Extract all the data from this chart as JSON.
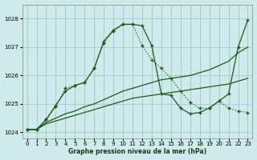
{
  "xlabel": "Graphe pression niveau de la mer (hPa)",
  "background_color": "#ceeaea",
  "grid_color": "#a8cccc",
  "line_color": "#1a5c1a",
  "xlim": [
    -0.5,
    23.5
  ],
  "ylim": [
    1023.8,
    1028.5
  ],
  "yticks": [
    1024,
    1025,
    1026,
    1027,
    1028
  ],
  "xticks": [
    0,
    1,
    2,
    3,
    4,
    5,
    6,
    7,
    8,
    9,
    10,
    11,
    12,
    13,
    14,
    15,
    16,
    17,
    18,
    19,
    20,
    21,
    22,
    23
  ],
  "series_dotted_x": [
    0,
    1,
    2,
    3,
    4,
    5,
    6,
    7,
    8,
    9,
    10,
    11,
    12,
    13,
    14,
    15,
    16,
    17,
    18,
    19,
    20,
    21,
    22,
    23
  ],
  "series_dotted_y": [
    1024.1,
    1024.1,
    1024.45,
    1024.9,
    1025.55,
    1025.65,
    1025.75,
    1026.25,
    1027.15,
    1027.55,
    1027.8,
    1027.8,
    1027.05,
    1026.55,
    1026.25,
    1025.9,
    1025.45,
    1025.05,
    1024.85,
    1024.85,
    1025.1,
    1024.85,
    1024.75,
    1024.7
  ],
  "series_solid_marker_x": [
    0,
    1,
    2,
    3,
    4,
    5,
    6,
    7,
    8,
    9,
    10,
    11,
    12,
    13,
    14,
    15,
    16,
    17,
    18,
    19,
    20,
    21,
    22,
    23
  ],
  "series_solid_marker_y": [
    1024.1,
    1024.1,
    1024.45,
    1024.95,
    1025.45,
    1025.65,
    1025.75,
    1026.25,
    1027.2,
    1027.6,
    1027.8,
    1027.8,
    1027.75,
    1027.05,
    1025.35,
    1025.3,
    1024.85,
    1024.65,
    1024.7,
    1024.85,
    1025.1,
    1025.35,
    1027.0,
    1027.95
  ],
  "series_slow1_x": [
    0,
    1,
    2,
    3,
    4,
    5,
    6,
    7,
    8,
    9,
    10,
    11,
    12,
    13,
    14,
    15,
    16,
    17,
    18,
    19,
    20,
    21,
    22,
    23
  ],
  "series_slow1_y": [
    1024.1,
    1024.1,
    1024.35,
    1024.5,
    1024.65,
    1024.75,
    1024.9,
    1025.0,
    1025.15,
    1025.3,
    1025.45,
    1025.55,
    1025.65,
    1025.75,
    1025.85,
    1025.9,
    1025.95,
    1026.0,
    1026.1,
    1026.2,
    1026.35,
    1026.5,
    1026.8,
    1027.0
  ],
  "series_slow2_x": [
    0,
    1,
    2,
    3,
    4,
    5,
    6,
    7,
    8,
    9,
    10,
    11,
    12,
    13,
    14,
    15,
    16,
    17,
    18,
    19,
    20,
    21,
    22,
    23
  ],
  "series_slow2_y": [
    1024.1,
    1024.1,
    1024.3,
    1024.4,
    1024.5,
    1024.6,
    1024.7,
    1024.8,
    1024.9,
    1025.0,
    1025.1,
    1025.2,
    1025.25,
    1025.3,
    1025.35,
    1025.4,
    1025.45,
    1025.5,
    1025.55,
    1025.6,
    1025.65,
    1025.7,
    1025.8,
    1025.9
  ]
}
